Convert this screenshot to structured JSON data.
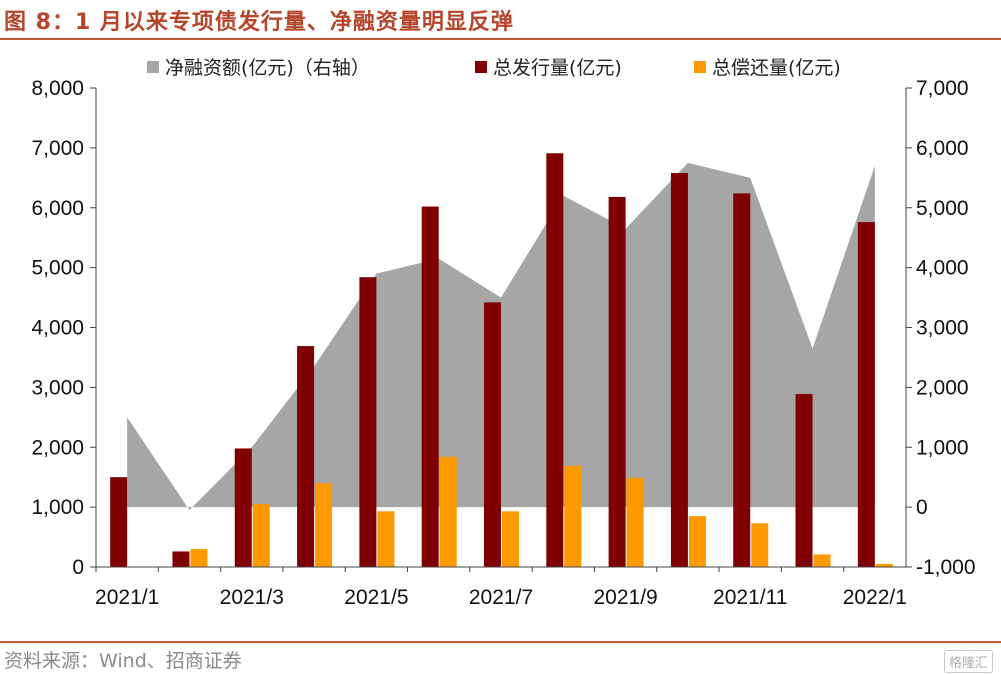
{
  "figure": {
    "title": "图 8：1 月以来专项债发行量、净融资量明显反弹",
    "source": "资料来源：Wind、招商证券",
    "watermark": "格隆汇"
  },
  "colors": {
    "net_financing": "#a6a6a6",
    "issuance": "#7f0000",
    "repayment": "#ff9900",
    "title": "#b5452b",
    "rule": "#c0583a"
  },
  "chart_data": {
    "type": "bar",
    "categories": [
      "2021/1",
      "2021/2",
      "2021/3",
      "2021/4",
      "2021/5",
      "2021/6",
      "2021/7",
      "2021/8",
      "2021/9",
      "2021/10",
      "2021/11",
      "2021/12",
      "2022/1"
    ],
    "x_tick_labels": [
      "2021/1",
      "",
      "2021/3",
      "",
      "2021/5",
      "",
      "2021/7",
      "",
      "2021/9",
      "",
      "2021/11",
      "",
      "2022/1"
    ],
    "series": [
      {
        "name": "净融资额(亿元)（右轴）",
        "type": "area",
        "axis": "right",
        "values": [
          1500,
          -50,
          1000,
          2350,
          3900,
          4150,
          3500,
          5200,
          4650,
          5750,
          5500,
          2650,
          5700
        ]
      },
      {
        "name": "总发行量(亿元)",
        "type": "bar",
        "axis": "left",
        "values": [
          1500,
          260,
          1980,
          3690,
          4840,
          6020,
          4420,
          6910,
          6180,
          6580,
          6240,
          2890,
          5760
        ]
      },
      {
        "name": "总偿还量(亿元)",
        "type": "bar",
        "axis": "left",
        "values": [
          0,
          300,
          1050,
          1400,
          930,
          1840,
          930,
          1690,
          1490,
          850,
          730,
          210,
          50
        ]
      }
    ],
    "yleft": {
      "min": 0,
      "max": 8000,
      "ticks": [
        0,
        1000,
        2000,
        3000,
        4000,
        5000,
        6000,
        7000,
        8000
      ],
      "tick_labels": [
        "0",
        "1,000",
        "2,000",
        "3,000",
        "4,000",
        "5,000",
        "6,000",
        "7,000",
        "8,000"
      ]
    },
    "yright": {
      "min": -1000,
      "max": 7000,
      "ticks": [
        -1000,
        0,
        1000,
        2000,
        3000,
        4000,
        5000,
        6000,
        7000
      ],
      "tick_labels": [
        "-1,000",
        "0",
        "1,000",
        "2,000",
        "3,000",
        "4,000",
        "5,000",
        "6,000",
        "7,000"
      ]
    },
    "legend_position": "top",
    "grid": false
  }
}
